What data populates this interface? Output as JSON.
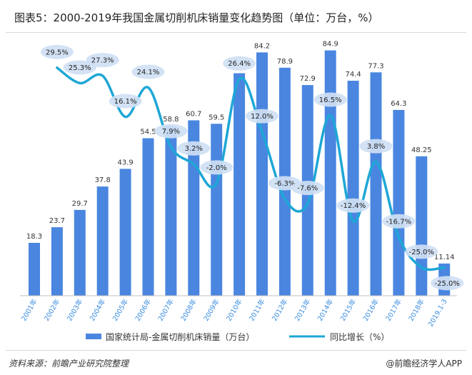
{
  "title": "图表5：2000-2019年我国金属切削机床销量变化趋势图（单位：万台，%）",
  "footer": {
    "source": "资料来源：前瞻产业研究院整理",
    "credit": "@前瞻经济学人APP"
  },
  "colors": {
    "bar": "#4a86e0",
    "line": "#1ea7d6",
    "bubble": "#cfe0f3"
  },
  "chart_data": {
    "type": "bar",
    "categories": [
      "2001年",
      "2002年",
      "2003年",
      "2004年",
      "2005年",
      "2006年",
      "2007年",
      "2008年",
      "2009年",
      "2010年",
      "2011年",
      "2012年",
      "2013年",
      "2014年",
      "2015年",
      "2016年",
      "2017年",
      "2018年",
      "2019.1-3"
    ],
    "series": [
      {
        "name": "国家统计局-金属切削机床销量（万台）",
        "type": "bar",
        "values": [
          18.3,
          23.7,
          29.7,
          37.8,
          43.9,
          54.5,
          58.8,
          60.7,
          59.5,
          null,
          84.2,
          78.9,
          72.9,
          84.9,
          74.4,
          77.3,
          64.3,
          48.25,
          11.14
        ],
        "labels": [
          "18.3",
          "23.7",
          "29.7",
          "37.8",
          "43.9",
          "54.5",
          "58.8",
          "60.7",
          "59.5",
          "",
          "84.2",
          "78.9",
          "72.9",
          "84.9",
          "74.4",
          "77.3",
          "64.3",
          "48.25",
          "11.14"
        ]
      },
      {
        "name": "同比增长（%）",
        "type": "line",
        "values": [
          null,
          29.5,
          25.3,
          27.3,
          16.1,
          24.1,
          7.9,
          3.2,
          -2.0,
          26.4,
          12.0,
          -6.3,
          -7.6,
          16.5,
          -12.4,
          3.8,
          -16.7,
          -25.0,
          -25.0
        ],
        "labels": [
          "",
          "29.5%",
          "25.3%",
          "27.3%",
          "16.1%",
          "24.1%",
          "7.9%",
          "3.2%",
          "-2.0%",
          "26.4%",
          "12.0%",
          "-6.3%",
          "-7.6%",
          "16.5%",
          "-12.4%",
          "3.8%",
          "-16.7%",
          "-25.0%",
          "-25.0%"
        ]
      }
    ],
    "legend": "bottom",
    "grid": false
  }
}
